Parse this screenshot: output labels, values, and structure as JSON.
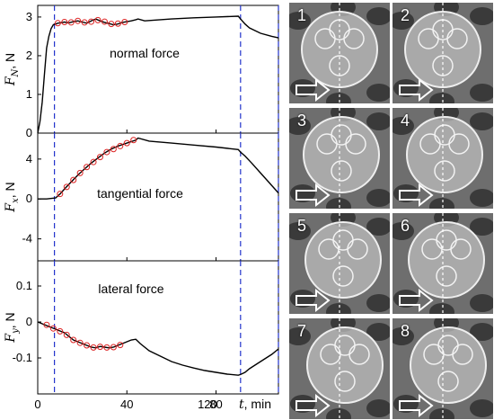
{
  "chart_data": [
    {
      "type": "line",
      "ylabel": "F_N, N",
      "annotation": "normal force",
      "ylim": [
        0,
        3.3
      ],
      "xlim": [
        0,
        108
      ],
      "yticks": [
        0,
        1,
        2,
        3
      ],
      "xticks": [
        0,
        40,
        80,
        120
      ],
      "series": [
        {
          "x": [
            0,
            1,
            2,
            3,
            4,
            5,
            6,
            7,
            8,
            9,
            10,
            12,
            14,
            16,
            18,
            20,
            22,
            24,
            26,
            28,
            30,
            32,
            34,
            36,
            38,
            40,
            42,
            44,
            45,
            48,
            55,
            60,
            70,
            80,
            90,
            91,
            93,
            95,
            100,
            105,
            108
          ],
          "y": [
            0,
            0.3,
            0.8,
            1.5,
            2.2,
            2.5,
            2.7,
            2.8,
            2.82,
            2.84,
            2.85,
            2.87,
            2.85,
            2.88,
            2.9,
            2.87,
            2.84,
            2.9,
            2.95,
            2.9,
            2.86,
            2.83,
            2.8,
            2.82,
            2.86,
            2.88,
            2.9,
            2.93,
            2.95,
            2.9,
            2.93,
            2.95,
            2.98,
            3.0,
            3.02,
            2.95,
            2.82,
            2.72,
            2.58,
            2.5,
            2.46
          ]
        }
      ],
      "markers_x": [
        9,
        12,
        15,
        18,
        21,
        24,
        27,
        30,
        33,
        36,
        39
      ],
      "markers_y": [
        2.84,
        2.87,
        2.86,
        2.9,
        2.86,
        2.88,
        2.92,
        2.88,
        2.82,
        2.83,
        2.87
      ]
    },
    {
      "type": "line",
      "ylabel": "F_x, N",
      "annotation": "tangential force",
      "ylim": [
        -6.2,
        6.6
      ],
      "xlim": [
        0,
        108
      ],
      "yticks": [
        -4,
        0,
        4
      ],
      "xticks": [
        0,
        40,
        80,
        120
      ],
      "series": [
        {
          "x": [
            0,
            4,
            8,
            10,
            12,
            15,
            18,
            21,
            24,
            27,
            30,
            33,
            36,
            40,
            44,
            45,
            50,
            60,
            70,
            80,
            90,
            91,
            93,
            96,
            100,
            104,
            108
          ],
          "y": [
            0,
            0,
            0.1,
            0.5,
            1.0,
            1.7,
            2.4,
            3.0,
            3.6,
            4.1,
            4.6,
            5.0,
            5.3,
            5.6,
            5.9,
            6.1,
            5.8,
            5.6,
            5.4,
            5.2,
            4.95,
            4.7,
            4.3,
            3.6,
            2.6,
            1.6,
            0.6
          ]
        }
      ],
      "markers_x": [
        10,
        13,
        16,
        19,
        22,
        25,
        28,
        31,
        34,
        37,
        40,
        43
      ],
      "markers_y": [
        0.5,
        1.2,
        1.9,
        2.6,
        3.2,
        3.7,
        4.2,
        4.7,
        5.0,
        5.3,
        5.6,
        5.9
      ]
    },
    {
      "type": "line",
      "ylabel": "F_y, N",
      "annotation": "lateral force",
      "ylim": [
        -0.2,
        0.17
      ],
      "xlim": [
        0,
        108
      ],
      "yticks": [
        -0.1,
        0,
        0.1
      ],
      "xticks": [
        0,
        40,
        80,
        120
      ],
      "xlabel": "t, min",
      "series": [
        {
          "x": [
            0,
            2,
            4,
            6,
            8,
            10,
            12,
            14,
            16,
            18,
            20,
            22,
            24,
            26,
            28,
            30,
            32,
            34,
            36,
            38,
            40,
            42,
            44,
            46,
            50,
            55,
            60,
            65,
            70,
            75,
            80,
            85,
            90,
            91,
            93,
            95,
            100,
            105,
            108
          ],
          "y": [
            0.0,
            -0.005,
            -0.01,
            -0.015,
            -0.02,
            -0.025,
            -0.03,
            -0.04,
            -0.05,
            -0.055,
            -0.06,
            -0.065,
            -0.07,
            -0.072,
            -0.068,
            -0.07,
            -0.072,
            -0.07,
            -0.065,
            -0.06,
            -0.055,
            -0.05,
            -0.048,
            -0.06,
            -0.08,
            -0.095,
            -0.11,
            -0.12,
            -0.128,
            -0.135,
            -0.14,
            -0.145,
            -0.148,
            -0.146,
            -0.14,
            -0.13,
            -0.11,
            -0.09,
            -0.075
          ]
        }
      ],
      "markers_x": [
        4,
        7,
        10,
        13,
        16,
        19,
        22,
        25,
        28,
        31,
        34,
        37
      ],
      "markers_y": [
        -0.008,
        -0.018,
        -0.026,
        -0.036,
        -0.05,
        -0.058,
        -0.065,
        -0.071,
        -0.069,
        -0.071,
        -0.07,
        -0.064
      ]
    }
  ],
  "vlines_x": [
    7.5,
    91,
    108
  ],
  "photos": {
    "labels": [
      "1",
      "2",
      "3",
      "4",
      "5",
      "6",
      "7",
      "8"
    ]
  },
  "colors": {
    "line": "#000000",
    "markers": "#dd2222",
    "vlines": "#2233cc"
  }
}
